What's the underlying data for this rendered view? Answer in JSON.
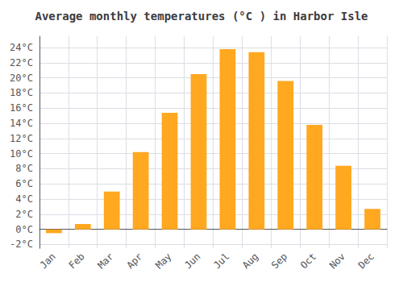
{
  "chart_data": {
    "type": "bar",
    "title": "Average monthly temperatures (°C ) in Harbor Isle",
    "categories": [
      "Jan",
      "Feb",
      "Mar",
      "Apr",
      "May",
      "Jun",
      "Jul",
      "Aug",
      "Sep",
      "Oct",
      "Nov",
      "Dec"
    ],
    "values": [
      -0.5,
      0.7,
      5.0,
      10.2,
      15.4,
      20.5,
      23.8,
      23.4,
      19.6,
      13.8,
      8.4,
      2.7
    ],
    "color": "#FFA820",
    "ylim": [
      -2.5,
      25.5
    ],
    "yticks": [
      {
        "value": -2,
        "label": "-2°C"
      },
      {
        "value": 0,
        "label": "0°C"
      },
      {
        "value": 2,
        "label": "2°C"
      },
      {
        "value": 4,
        "label": "4°C"
      },
      {
        "value": 6,
        "label": "6°C"
      },
      {
        "value": 8,
        "label": "8°C"
      },
      {
        "value": 10,
        "label": "10°C"
      },
      {
        "value": 12,
        "label": "12°C"
      },
      {
        "value": 14,
        "label": "14°C"
      },
      {
        "value": 16,
        "label": "16°C"
      },
      {
        "value": 18,
        "label": "18°C"
      },
      {
        "value": 20,
        "label": "20°C"
      },
      {
        "value": 22,
        "label": "22°C"
      },
      {
        "value": 24,
        "label": "24°C"
      }
    ],
    "grid": true
  }
}
